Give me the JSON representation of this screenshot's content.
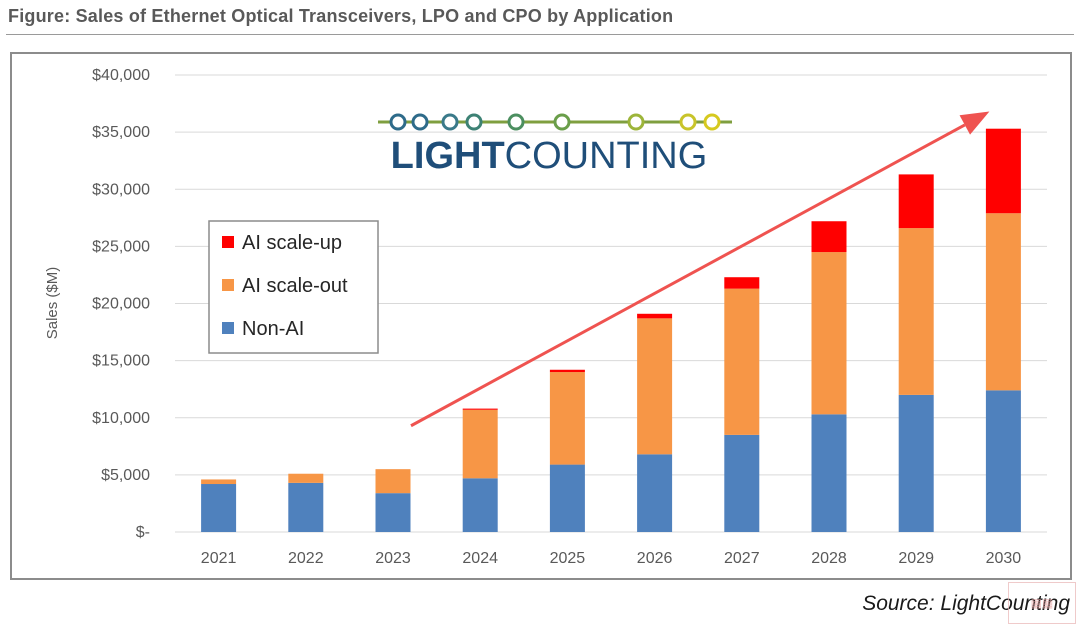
{
  "figure_title": "Figure: Sales of Ethernet Optical Transceivers, LPO and CPO by Application",
  "source": "Source: LightCounting",
  "logo": {
    "text_bold": "LIGHT",
    "text_light": "COUNTING"
  },
  "colors": {
    "non_ai": "#4f81bd",
    "scale_out": "#f79646",
    "scale_up": "#ff0000",
    "arrow": "#ef5350",
    "grid": "#d9d9d9",
    "axis_text": "#595959",
    "logo_text": "#1f4e79"
  },
  "chart_data": {
    "type": "bar",
    "stacked": true,
    "title": "",
    "xlabel": "",
    "ylabel": "Sales ($M)",
    "ylim": [
      0,
      40000
    ],
    "yticks": [
      0,
      5000,
      10000,
      15000,
      20000,
      25000,
      30000,
      35000,
      40000
    ],
    "ytick_labels": [
      "$-",
      "$5,000",
      "$10,000",
      "$15,000",
      "$20,000",
      "$25,000",
      "$30,000",
      "$35,000",
      "$40,000"
    ],
    "categories": [
      "2021",
      "2022",
      "2023",
      "2024",
      "2025",
      "2026",
      "2027",
      "2028",
      "2029",
      "2030"
    ],
    "series": [
      {
        "name": "Non-AI",
        "color": "#4f81bd",
        "values": [
          4200,
          4300,
          3400,
          4700,
          5900,
          6800,
          8500,
          10300,
          12000,
          12400
        ]
      },
      {
        "name": "AI scale-out",
        "color": "#f79646",
        "values": [
          400,
          800,
          2100,
          6000,
          8100,
          11900,
          12800,
          14200,
          14600,
          15500
        ]
      },
      {
        "name": "AI scale-up",
        "color": "#ff0000",
        "values": [
          0,
          0,
          0,
          100,
          200,
          400,
          1000,
          2700,
          4700,
          7400
        ]
      }
    ],
    "legend": {
      "position": "top-left",
      "order": [
        "AI scale-up",
        "AI scale-out",
        "Non-AI"
      ]
    },
    "grid": true,
    "annotations": [
      {
        "type": "trend-arrow",
        "from": {
          "x": "2023",
          "y": 9300
        },
        "to": {
          "x": "2030",
          "y": 36800
        }
      }
    ]
  }
}
